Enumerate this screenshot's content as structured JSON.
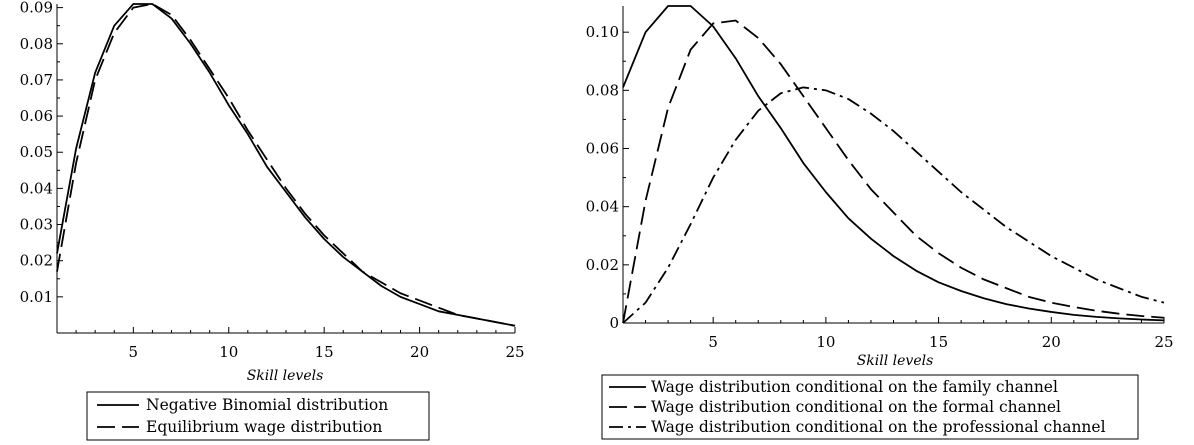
{
  "chart_data": [
    {
      "type": "line",
      "title": "",
      "xlabel": "Skill levels",
      "ylabel": "",
      "xlim": [
        1,
        25
      ],
      "ylim": [
        0.0,
        0.091
      ],
      "x_ticks": [
        5,
        10,
        15,
        20,
        25
      ],
      "y_ticks": [
        0.01,
        0.02,
        0.03,
        0.04,
        0.05,
        0.06,
        0.07,
        0.08,
        0.09
      ],
      "grid": false,
      "legend_position": "bottom",
      "series": [
        {
          "name": "Negative Binomial distribution",
          "style": "solid",
          "x": [
            1,
            2,
            3,
            4,
            5,
            6,
            7,
            8,
            9,
            10,
            11,
            12,
            13,
            14,
            15,
            16,
            17,
            18,
            19,
            20,
            21,
            22,
            23,
            24,
            25
          ],
          "y": [
            0.022,
            0.051,
            0.072,
            0.085,
            0.091,
            0.091,
            0.087,
            0.08,
            0.072,
            0.063,
            0.055,
            0.046,
            0.039,
            0.032,
            0.026,
            0.021,
            0.017,
            0.013,
            0.01,
            0.008,
            0.006,
            0.005,
            0.004,
            0.003,
            0.002
          ]
        },
        {
          "name": "Equilibrium wage distribution",
          "style": "dash",
          "x": [
            1,
            2,
            3,
            4,
            5,
            6,
            7,
            8,
            9,
            10,
            11,
            12,
            13,
            14,
            15,
            16,
            17,
            18,
            19,
            20,
            21,
            22,
            23,
            24,
            25
          ],
          "y": [
            0.017,
            0.047,
            0.07,
            0.083,
            0.09,
            0.091,
            0.088,
            0.081,
            0.073,
            0.065,
            0.056,
            0.048,
            0.04,
            0.033,
            0.027,
            0.022,
            0.017,
            0.014,
            0.011,
            0.009,
            0.007,
            0.005,
            0.004,
            0.003,
            0.002
          ]
        }
      ]
    },
    {
      "type": "line",
      "title": "",
      "xlabel": "Skill levels",
      "ylabel": "",
      "xlim": [
        1,
        25
      ],
      "ylim": [
        0.0,
        0.109
      ],
      "x_ticks": [
        5,
        10,
        15,
        20,
        25
      ],
      "y_ticks": [
        0,
        0.02,
        0.04,
        0.06,
        0.08,
        0.1
      ],
      "y_tick_labels": [
        "0",
        "0.02",
        "0.04",
        "0.06",
        "0.08",
        "0.10"
      ],
      "grid": false,
      "legend_position": "bottom",
      "series": [
        {
          "name": "Wage distribution conditional on the family channel",
          "style": "solid",
          "x": [
            1,
            2,
            3,
            4,
            5,
            6,
            7,
            8,
            9,
            10,
            11,
            12,
            13,
            14,
            15,
            16,
            17,
            18,
            19,
            20,
            21,
            22,
            23,
            24,
            25
          ],
          "y": [
            0.081,
            0.1,
            0.109,
            0.109,
            0.102,
            0.091,
            0.078,
            0.067,
            0.055,
            0.045,
            0.036,
            0.029,
            0.023,
            0.018,
            0.014,
            0.011,
            0.0085,
            0.0065,
            0.005,
            0.0038,
            0.0028,
            0.0021,
            0.0016,
            0.0012,
            0.0009
          ]
        },
        {
          "name": "Wage distribution conditional on the formal channel",
          "style": "dash",
          "x": [
            1,
            2,
            3,
            4,
            5,
            6,
            7,
            8,
            9,
            10,
            11,
            12,
            13,
            14,
            15,
            16,
            17,
            18,
            19,
            20,
            21,
            22,
            23,
            24,
            25
          ],
          "y": [
            0.0,
            0.042,
            0.074,
            0.094,
            0.103,
            0.104,
            0.098,
            0.089,
            0.078,
            0.067,
            0.056,
            0.046,
            0.038,
            0.03,
            0.024,
            0.019,
            0.015,
            0.012,
            0.009,
            0.007,
            0.0055,
            0.0042,
            0.0032,
            0.0024,
            0.0018
          ]
        },
        {
          "name": "Wage distribution conditional on the professional channel",
          "style": "dashdot",
          "x": [
            1,
            2,
            3,
            4,
            5,
            6,
            7,
            8,
            9,
            10,
            11,
            12,
            13,
            14,
            15,
            16,
            17,
            18,
            19,
            20,
            21,
            22,
            23,
            24,
            25
          ],
          "y": [
            0.0,
            0.007,
            0.019,
            0.034,
            0.05,
            0.063,
            0.073,
            0.079,
            0.081,
            0.08,
            0.077,
            0.072,
            0.066,
            0.059,
            0.052,
            0.045,
            0.039,
            0.033,
            0.028,
            0.023,
            0.019,
            0.015,
            0.012,
            0.009,
            0.007
          ]
        }
      ]
    }
  ]
}
